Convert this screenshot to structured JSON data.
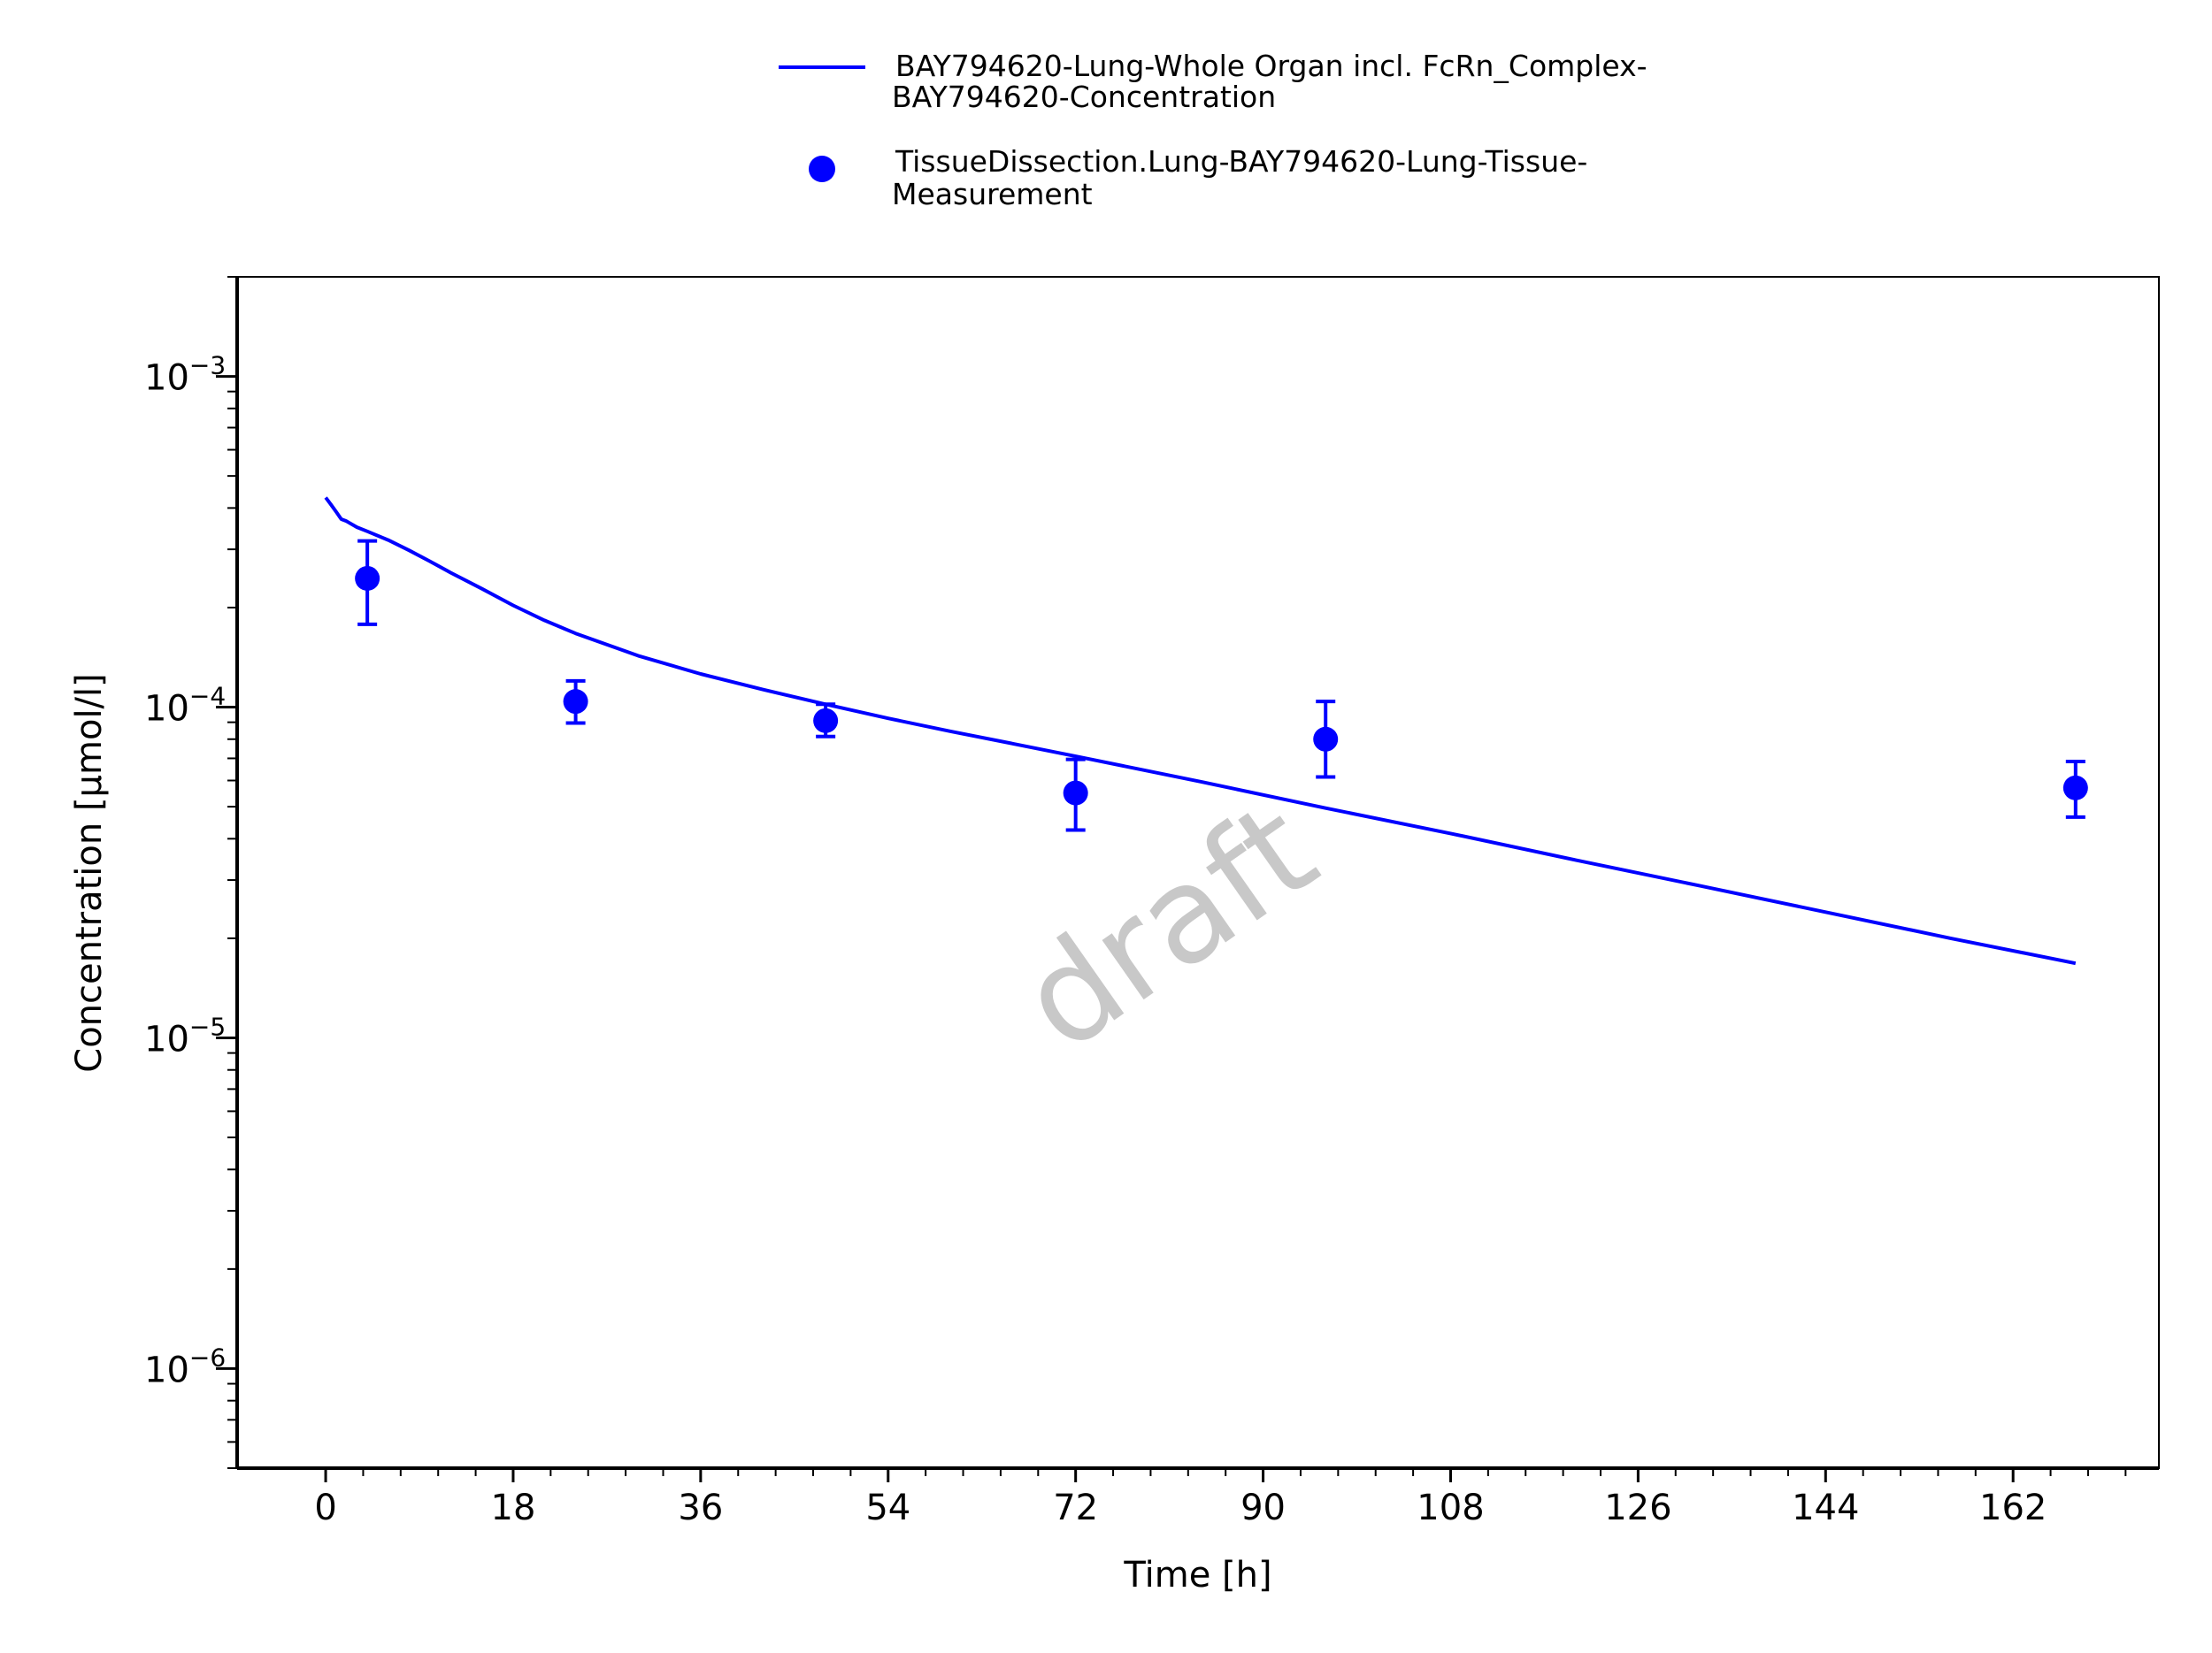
{
  "chart_data": {
    "type": "line",
    "watermark": "draft",
    "xlabel": "Time [h]",
    "ylabel": "Concentration [µmol/l]",
    "xlim": [
      -8.5,
      176
    ],
    "ylim": [
      5e-07,
      0.002
    ],
    "yscale": "log",
    "grid": false,
    "legend_position": "top",
    "x_ticks": [
      0,
      18,
      36,
      54,
      72,
      90,
      108,
      126,
      144,
      162
    ],
    "x_tick_labels": [
      "0",
      "18",
      "36",
      "54",
      "72",
      "90",
      "108",
      "126",
      "144",
      "162"
    ],
    "y_ticks": [
      {
        "value": 0.001,
        "base": "10",
        "exp": "−3"
      },
      {
        "value": 0.0001,
        "base": "10",
        "exp": "−4"
      },
      {
        "value": 1e-05,
        "base": "10",
        "exp": "−5"
      },
      {
        "value": 1e-06,
        "base": "10",
        "exp": "−6"
      }
    ],
    "series": [
      {
        "name_lines": [
          "BAY794620-Lung-Whole Organ incl. FcRn_Complex-",
          "BAY794620-Concentration"
        ],
        "kind": "line",
        "color": "#0000ff",
        "x": [
          0,
          0.5,
          1,
          1.5,
          2,
          3,
          4,
          6,
          8,
          10,
          12,
          15,
          18,
          21,
          24,
          30,
          36,
          42,
          48,
          54,
          60,
          66,
          72,
          84,
          96,
          108,
          120,
          132,
          144,
          156,
          168
        ],
        "y": [
          0.00043,
          0.00041,
          0.00039,
          0.00037,
          0.000365,
          0.00035,
          0.00034,
          0.00032,
          0.000298,
          0.000276,
          0.000255,
          0.000228,
          0.000203,
          0.000183,
          0.000167,
          0.000143,
          0.000126,
          0.000113,
          0.000102,
          9.25e-05,
          8.45e-05,
          7.75e-05,
          7.1e-05,
          5.95e-05,
          4.95e-05,
          4.15e-05,
          3.45e-05,
          2.88e-05,
          2.4e-05,
          2e-05,
          1.68e-05
        ]
      },
      {
        "name_lines": [
          "TissueDissection.Lung-BAY794620-Lung-Tissue-",
          "Measurement"
        ],
        "kind": "scatter",
        "color": "#0000ff",
        "x": [
          4,
          24,
          48,
          72,
          96,
          168
        ],
        "y": [
          0.000245,
          0.000104,
          9.1e-05,
          5.5e-05,
          8e-05,
          5.7e-05
        ],
        "y_err_low": [
          0.000178,
          8.95e-05,
          8.15e-05,
          4.25e-05,
          6.15e-05,
          4.65e-05
        ],
        "y_err_high": [
          0.000318,
          0.00012,
          0.000102,
          6.95e-05,
          0.000104,
          6.85e-05
        ]
      }
    ]
  }
}
